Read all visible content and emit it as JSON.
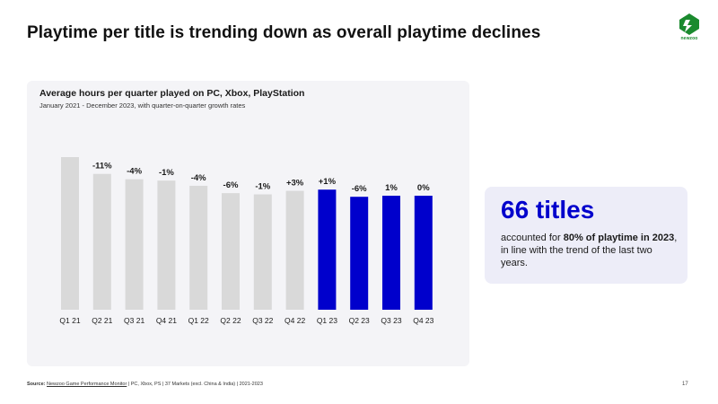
{
  "header": {
    "title": "Playtime per title is trending down as overall playtime declines"
  },
  "logo": {
    "text": "newzoo",
    "color": "#1a8a2e"
  },
  "chart_data": {
    "type": "bar",
    "title": "Average hours per quarter played on PC, Xbox, PlayStation",
    "subtitle": "January 2021 - December 2023, with quarter-on-quarter growth rates",
    "categories": [
      "Q1 21",
      "Q2 21",
      "Q3 21",
      "Q4 21",
      "Q1 22",
      "Q2 22",
      "Q3 22",
      "Q4 22",
      "Q1 23",
      "Q2 23",
      "Q3 23",
      "Q4 23"
    ],
    "values": [
      100,
      89,
      85.5,
      84.6,
      81.2,
      76.4,
      75.6,
      77.9,
      78.7,
      74,
      74.7,
      74.7
    ],
    "data_labels": [
      "",
      "-11%",
      "-4%",
      "-1%",
      "-4%",
      "-6%",
      "-1%",
      "+3%",
      "+1%",
      "-6%",
      "1%",
      "0%"
    ],
    "highlight_from_index": 8,
    "colors": {
      "base": "#d9d9d9",
      "highlight": "#0000cc",
      "background": "#f4f4f7"
    },
    "ylim": [
      0,
      100
    ],
    "xlabel": "",
    "ylabel": "",
    "grid": false
  },
  "callout": {
    "heading": "66 titles",
    "text_before": "accounted for ",
    "text_bold": "80% of playtime in 2023",
    "text_after": ", in line with the trend of the last two years."
  },
  "footer": {
    "source_label": "Source:",
    "source_link": "Newzoo Game Performance Monitor",
    "source_rest": " | PC, Xbox, PS | 37 Markets (excl. China & India) | 2021-2023",
    "page_number": "17"
  }
}
